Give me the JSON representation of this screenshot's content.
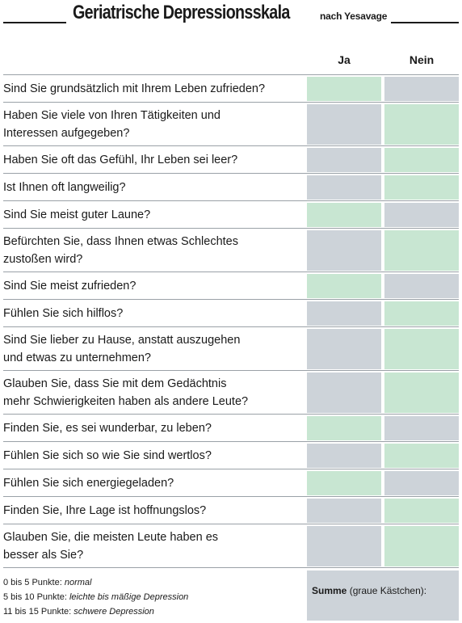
{
  "header": {
    "title": "Geriatrische Depressionsskala",
    "subtitle": "nach Yesavage"
  },
  "columns": {
    "ja": "Ja",
    "nein": "Nein"
  },
  "questions": [
    {
      "lines": [
        "Sind Sie grundsätzlich mit Ihrem Leben zufrieden?"
      ],
      "ja": "green",
      "nein": "grey"
    },
    {
      "lines": [
        "Haben Sie viele von Ihren Tätigkeiten und",
        "Interessen aufgegeben?"
      ],
      "ja": "grey",
      "nein": "green"
    },
    {
      "lines": [
        "Haben Sie oft das Gefühl, Ihr Leben sei leer?"
      ],
      "ja": "grey",
      "nein": "green"
    },
    {
      "lines": [
        "Ist Ihnen oft langweilig?"
      ],
      "ja": "grey",
      "nein": "green"
    },
    {
      "lines": [
        "Sind Sie meist guter Laune?"
      ],
      "ja": "green",
      "nein": "grey"
    },
    {
      "lines": [
        "Befürchten Sie, dass Ihnen etwas Schlechtes",
        "zustoßen wird?"
      ],
      "ja": "grey",
      "nein": "green"
    },
    {
      "lines": [
        "Sind Sie meist zufrieden?"
      ],
      "ja": "green",
      "nein": "grey"
    },
    {
      "lines": [
        "Fühlen Sie sich hilflos?"
      ],
      "ja": "grey",
      "nein": "green"
    },
    {
      "lines": [
        "Sind Sie lieber zu Hause, anstatt auszugehen",
        "und etwas zu unternehmen?"
      ],
      "ja": "grey",
      "nein": "green"
    },
    {
      "lines": [
        "Glauben Sie, dass Sie mit dem Gedächtnis",
        "mehr Schwierigkeiten haben als andere Leute?"
      ],
      "ja": "grey",
      "nein": "green"
    },
    {
      "lines": [
        "Finden Sie, es sei wunderbar, zu leben?"
      ],
      "ja": "green",
      "nein": "grey"
    },
    {
      "lines": [
        "Fühlen Sie sich so wie Sie sind wertlos?"
      ],
      "ja": "grey",
      "nein": "green"
    },
    {
      "lines": [
        "Fühlen Sie sich energiegeladen?"
      ],
      "ja": "green",
      "nein": "grey"
    },
    {
      "lines": [
        "Finden Sie, Ihre Lage ist hoffnungslos?"
      ],
      "ja": "grey",
      "nein": "green"
    },
    {
      "lines": [
        "Glauben Sie, die meisten Leute haben es",
        "besser als Sie?"
      ],
      "ja": "grey",
      "nein": "green"
    }
  ],
  "legend": [
    {
      "range": "0 bis 5 Punkte: ",
      "label": "normal"
    },
    {
      "range": "5 bis 10 Punkte: ",
      "label": "leichte bis mäßige Depression"
    },
    {
      "range": "11 bis 15 Punkte: ",
      "label": "schwere Depression"
    }
  ],
  "summe": {
    "label": "Summe",
    "note": " (graue Kästchen):"
  },
  "colors": {
    "grey_box": "#cdd3d9",
    "green_box": "#c8e6d2"
  }
}
